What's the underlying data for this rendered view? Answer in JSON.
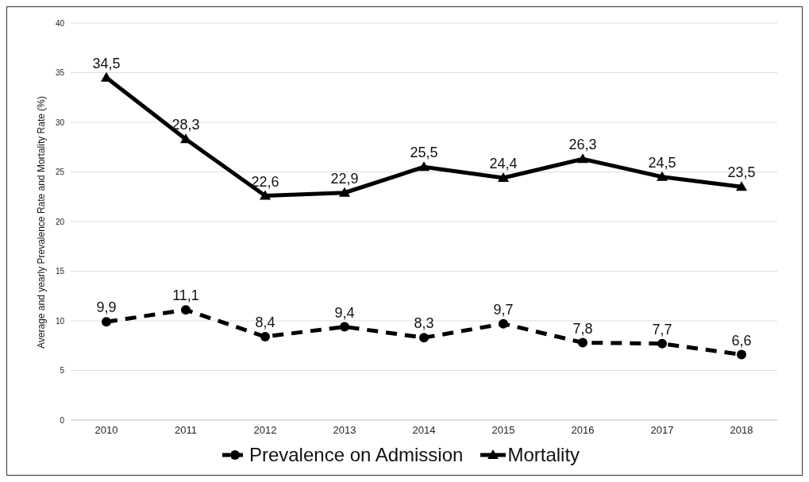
{
  "chart_data": {
    "type": "line",
    "ylabel": "Average and yearly Prevalence Rate and Mortality Rate (%)",
    "categories": [
      "2010",
      "2011",
      "2012",
      "2013",
      "2014",
      "2015",
      "2016",
      "2017",
      "2018"
    ],
    "series": [
      {
        "name": "Prevalence on Admission",
        "color": "#000000",
        "marker": "circle",
        "line_style": "dashed",
        "values": [
          9.9,
          11.1,
          8.4,
          9.4,
          8.3,
          9.7,
          7.8,
          7.7,
          6.6
        ],
        "value_labels": [
          "9,9",
          "11,1",
          "8,4",
          "9,4",
          "8,3",
          "9,7",
          "7,8",
          "7,7",
          "6,6"
        ]
      },
      {
        "name": "Mortality",
        "color": "#000000",
        "marker": "triangle",
        "line_style": "solid",
        "values": [
          34.5,
          28.3,
          22.6,
          22.9,
          25.5,
          24.4,
          26.3,
          24.5,
          23.5
        ],
        "value_labels": [
          "34,5",
          "28,3",
          "22,6",
          "22,9",
          "25,5",
          "24,4",
          "26,3",
          "24,5",
          "23,5"
        ]
      }
    ],
    "ylim": [
      0,
      40
    ],
    "yticks": [
      0,
      5,
      10,
      15,
      20,
      25,
      30,
      35,
      40
    ],
    "grid": "y",
    "legend": "bottom"
  }
}
